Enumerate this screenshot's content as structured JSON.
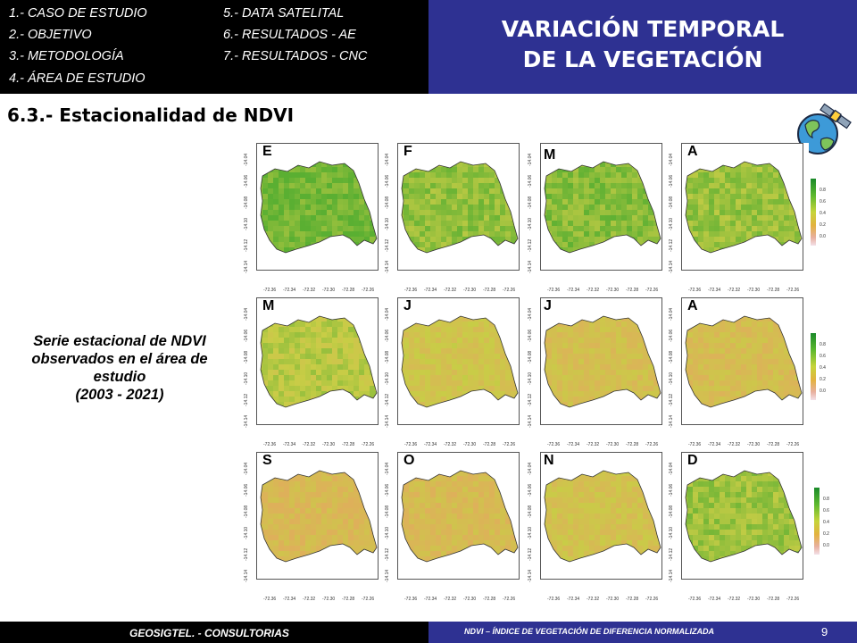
{
  "toc": [
    "1.- CASO DE ESTUDIO",
    "2.- OBJETIVO",
    "3.- METODOLOGÍA",
    "4.- ÁREA DE ESTUDIO",
    "5.- DATA SATELITAL",
    "6.- RESULTADOS - AE",
    "7.- RESULTADOS - CNC"
  ],
  "title_line1": "VARIACIÓN TEMPORAL",
  "title_line2": "DE LA VEGETACIÓN",
  "subtitle": "6.3.- Estacionalidad de NDVI",
  "caption": {
    "line1": "Serie estacional de NDVI",
    "line2": "observados en el área de",
    "line3": "estudio",
    "line4": "(2003 - 2021)"
  },
  "months": [
    "E",
    "F",
    "M",
    "A",
    "M",
    "J",
    "J",
    "A",
    "S",
    "O",
    "N",
    "D"
  ],
  "month_greenness": [
    0.9,
    0.75,
    0.8,
    0.72,
    0.55,
    0.35,
    0.25,
    0.22,
    0.15,
    0.18,
    0.3,
    0.7
  ],
  "y_ticks": [
    "-14.04",
    "-14.06",
    "-14.08",
    "-14.10",
    "-14.12",
    "-14.14"
  ],
  "x_ticks": [
    "-72.36",
    "-72.34",
    "-72.32",
    "-72.30",
    "-72.28",
    "-72.26"
  ],
  "legend_ticks": [
    "0.8",
    "0.6",
    "0.4",
    "0.2",
    "0.0"
  ],
  "colors": {
    "header_left": "#000000",
    "header_right": "#2e3192"
  },
  "footer_left": "GEOSIGTEL. - CONSULTORIAS",
  "footer_right": "NDVI – ÍNDICE DE VEGETACIÓN DE DIFERENCIA NORMALIZADA",
  "page_number": "9"
}
